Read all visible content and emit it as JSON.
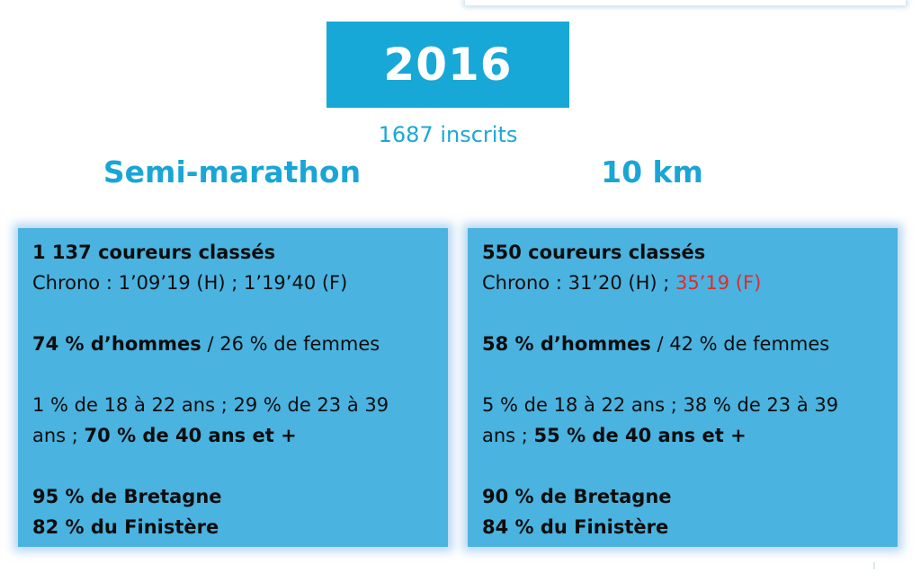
{
  "header": {
    "year": "2016",
    "inscrits": "1687 inscrits"
  },
  "semi": {
    "title": "Semi-marathon",
    "classes": "1 137 coureurs classés",
    "chrono_prefix": "Chrono : ",
    "chrono_h": "1’09’19 (H)",
    "chrono_sep": " ; ",
    "chrono_f": "1’19’40 (F)",
    "hommes": "74 % d’hommes",
    "femmes": " / 26 % de femmes",
    "ages_line1": "1 % de 18 à 22 ans ; 29 % de 23 à 39",
    "ages_line2_prefix": "ans ; ",
    "ages_line2_bold": "70 % de 40 ans et +",
    "bretagne": "95 % de Bretagne",
    "finistere": "82 % du Finistère"
  },
  "ten_km": {
    "title": "10 km",
    "classes": "550 coureurs classés",
    "chrono_prefix": "Chrono : ",
    "chrono_h": "31’20 (H)",
    "chrono_sep": " ; ",
    "chrono_f": "35’19 (F)",
    "hommes": "58 % d’hommes",
    "femmes": " / 42 % de femmes",
    "ages_line1": "5 % de 18 à 22 ans ; 38 % de 23 à 39",
    "ages_line2_prefix": "ans ; ",
    "ages_line2_bold": "55 % de 40 ans et +",
    "bretagne": "90 % de Bretagne",
    "finistere": "84 % du Finistère"
  },
  "colors": {
    "accent": "#17a8d8",
    "panel": "#4ab3e0",
    "highlight": "#e02b2b"
  }
}
